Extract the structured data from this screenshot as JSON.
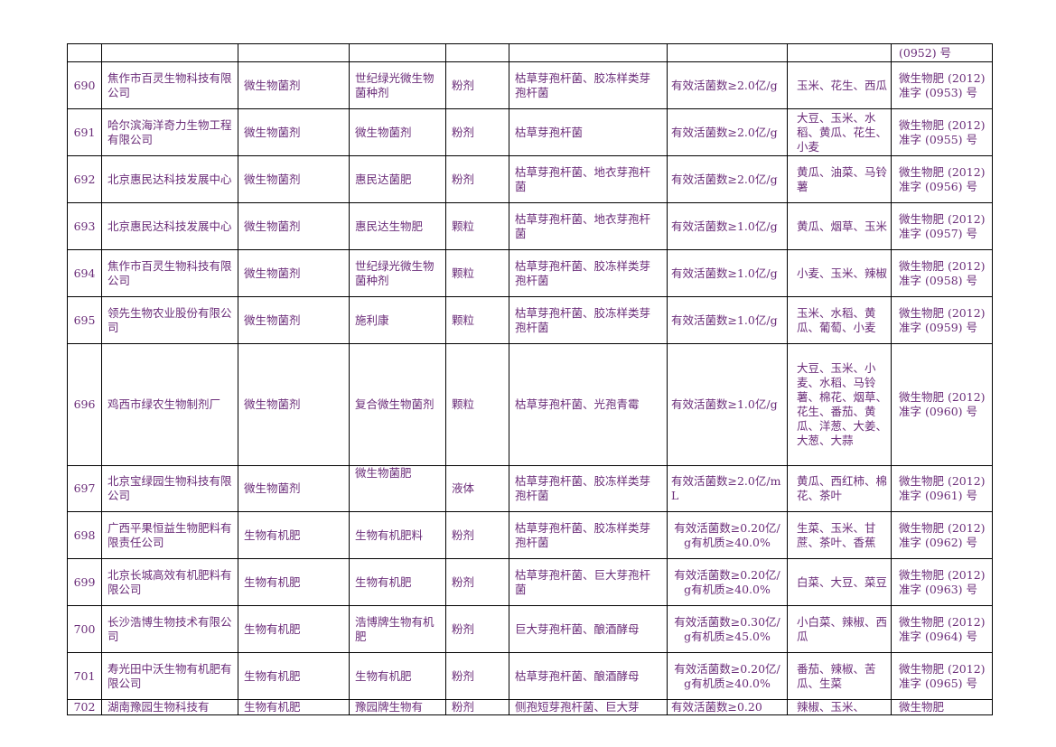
{
  "partial_top_row": {
    "no": "",
    "company": "",
    "category": "",
    "product": "",
    "form": "",
    "strain": "",
    "spec": "",
    "crops": "",
    "reg": "(0952) 号"
  },
  "rows": [
    {
      "no": "690",
      "company": "焦作市百灵生物科技有限公司",
      "category": "微生物菌剂",
      "product": "世纪绿光微生物菌种剂",
      "form": "粉剂",
      "strain": "枯草芽孢杆菌、胶冻样类芽孢杆菌",
      "spec": "有效活菌数≥2.0亿/g",
      "crops": "玉米、花生、西瓜",
      "reg": "微生物肥 (2012) 准字 (0953) 号"
    },
    {
      "no": "691",
      "company": "哈尔滨海洋奇力生物工程有限公司",
      "category": "微生物菌剂",
      "product": "微生物菌剂",
      "form": "粉剂",
      "strain": "枯草芽孢杆菌",
      "spec": "有效活菌数≥2.0亿/g",
      "crops": "大豆、玉米、水稻、黄瓜、花生、小麦",
      "reg": "微生物肥 (2012) 准字 (0955) 号"
    },
    {
      "no": "692",
      "company": "北京惠民达科技发展中心",
      "category": "微生物菌剂",
      "product": "惠民达菌肥",
      "form": "粉剂",
      "strain": "枯草芽孢杆菌、地衣芽孢杆菌",
      "spec": "有效活菌数≥2.0亿/g",
      "crops": "黄瓜、油菜、马铃薯",
      "reg": "微生物肥 (2012) 准字 (0956) 号"
    },
    {
      "no": "693",
      "company": "北京惠民达科技发展中心",
      "category": "微生物菌剂",
      "product": "惠民达生物肥",
      "form": "颗粒",
      "strain": "枯草芽孢杆菌、地衣芽孢杆菌",
      "spec": "有效活菌数≥1.0亿/g",
      "crops": "黄瓜、烟草、玉米",
      "reg": "微生物肥 (2012) 准字 (0957) 号"
    },
    {
      "no": "694",
      "company": "焦作市百灵生物科技有限公司",
      "category": "微生物菌剂",
      "product": "世纪绿光微生物菌种剂",
      "form": "颗粒",
      "strain": "枯草芽孢杆菌、胶冻样类芽孢杆菌",
      "spec": "有效活菌数≥1.0亿/g",
      "crops": "小麦、玉米、辣椒",
      "reg": "微生物肥 (2012) 准字 (0958) 号"
    },
    {
      "no": "695",
      "company": "领先生物农业股份有限公司",
      "category": "微生物菌剂",
      "product": "施利康",
      "form": "颗粒",
      "strain": "枯草芽孢杆菌、胶冻样类芽孢杆菌",
      "spec": "有效活菌数≥1.0亿/g",
      "crops": "玉米、水稻、黄瓜、葡萄、小麦",
      "reg": "微生物肥 (2012) 准字 (0959) 号"
    },
    {
      "no": "696",
      "company": "鸡西市绿农生物制剂厂",
      "category": "微生物菌剂",
      "product": "复合微生物菌剂",
      "form": "颗粒",
      "strain": "枯草芽孢杆菌、光孢青霉",
      "spec": "有效活菌数≥1.0亿/g",
      "crops": "大豆、玉米、小麦、水稻、马铃薯、棉花、烟草、花生、番茄、黄瓜、洋葱、大姜、大葱、大蒜",
      "reg": "微生物肥 (2012) 准字 (0960) 号"
    },
    {
      "no": "697",
      "company": "北京宝绿园生物科技有限公司",
      "category": "微生物菌剂",
      "product": "微生物菌肥",
      "form": "液体",
      "strain": "枯草芽孢杆菌、胶冻样类芽孢杆菌",
      "spec": "有效活菌数≥2.0亿/mL",
      "crops": "黄瓜、西红柿、棉花、茶叶",
      "reg": "微生物肥 (2012) 准字 (0961) 号"
    },
    {
      "no": "698",
      "company": "广西平果恒益生物肥料有限责任公司",
      "category": "生物有机肥",
      "product": "生物有机肥料",
      "form": "粉剂",
      "strain": "枯草芽孢杆菌、胶冻样类芽孢杆菌",
      "spec": "有效活菌数≥0.20亿/g有机质≥40.0%",
      "crops": "生菜、玉米、甘蔗、茶叶、香蕉",
      "reg": "微生物肥 (2012) 准字 (0962) 号"
    },
    {
      "no": "699",
      "company": "北京长城高效有机肥料有限公司",
      "category": "生物有机肥",
      "product": "生物有机肥",
      "form": "粉剂",
      "strain": "枯草芽孢杆菌、巨大芽孢杆菌",
      "spec": "有效活菌数≥0.20亿/g有机质≥40.0%",
      "crops": "白菜、大豆、菜豆",
      "reg": "微生物肥 (2012) 准字 (0963) 号"
    },
    {
      "no": "700",
      "company": "长沙浩博生物技术有限公司",
      "category": "生物有机肥",
      "product": "浩博牌生物有机肥",
      "form": "粉剂",
      "strain": "巨大芽孢杆菌、酿酒酵母",
      "spec": "有效活菌数≥0.30亿/g有机质≥45.0%",
      "crops": "小白菜、辣椒、西瓜",
      "reg": "微生物肥 (2012) 准字 (0964) 号"
    },
    {
      "no": "701",
      "company": "寿光田中沃生物有机肥有限公司",
      "category": "生物有机肥",
      "product": "生物有机肥",
      "form": "粉剂",
      "strain": "枯草芽孢杆菌、酿酒酵母",
      "spec": "有效活菌数≥0.20亿/g有机质≥40.0%",
      "crops": "番茄、辣椒、苦瓜、生菜",
      "reg": "微生物肥 (2012) 准字 (0965) 号"
    },
    {
      "no": "702",
      "company": "湖南豫园生物科技有",
      "category": "生物有机肥",
      "product": "豫园牌生物有",
      "form": "粉剂",
      "strain": "侧孢短芽孢杆菌、巨大芽",
      "spec": "有效活菌数≥0.20",
      "crops": "辣椒、玉米、",
      "reg": "微生物肥"
    }
  ]
}
